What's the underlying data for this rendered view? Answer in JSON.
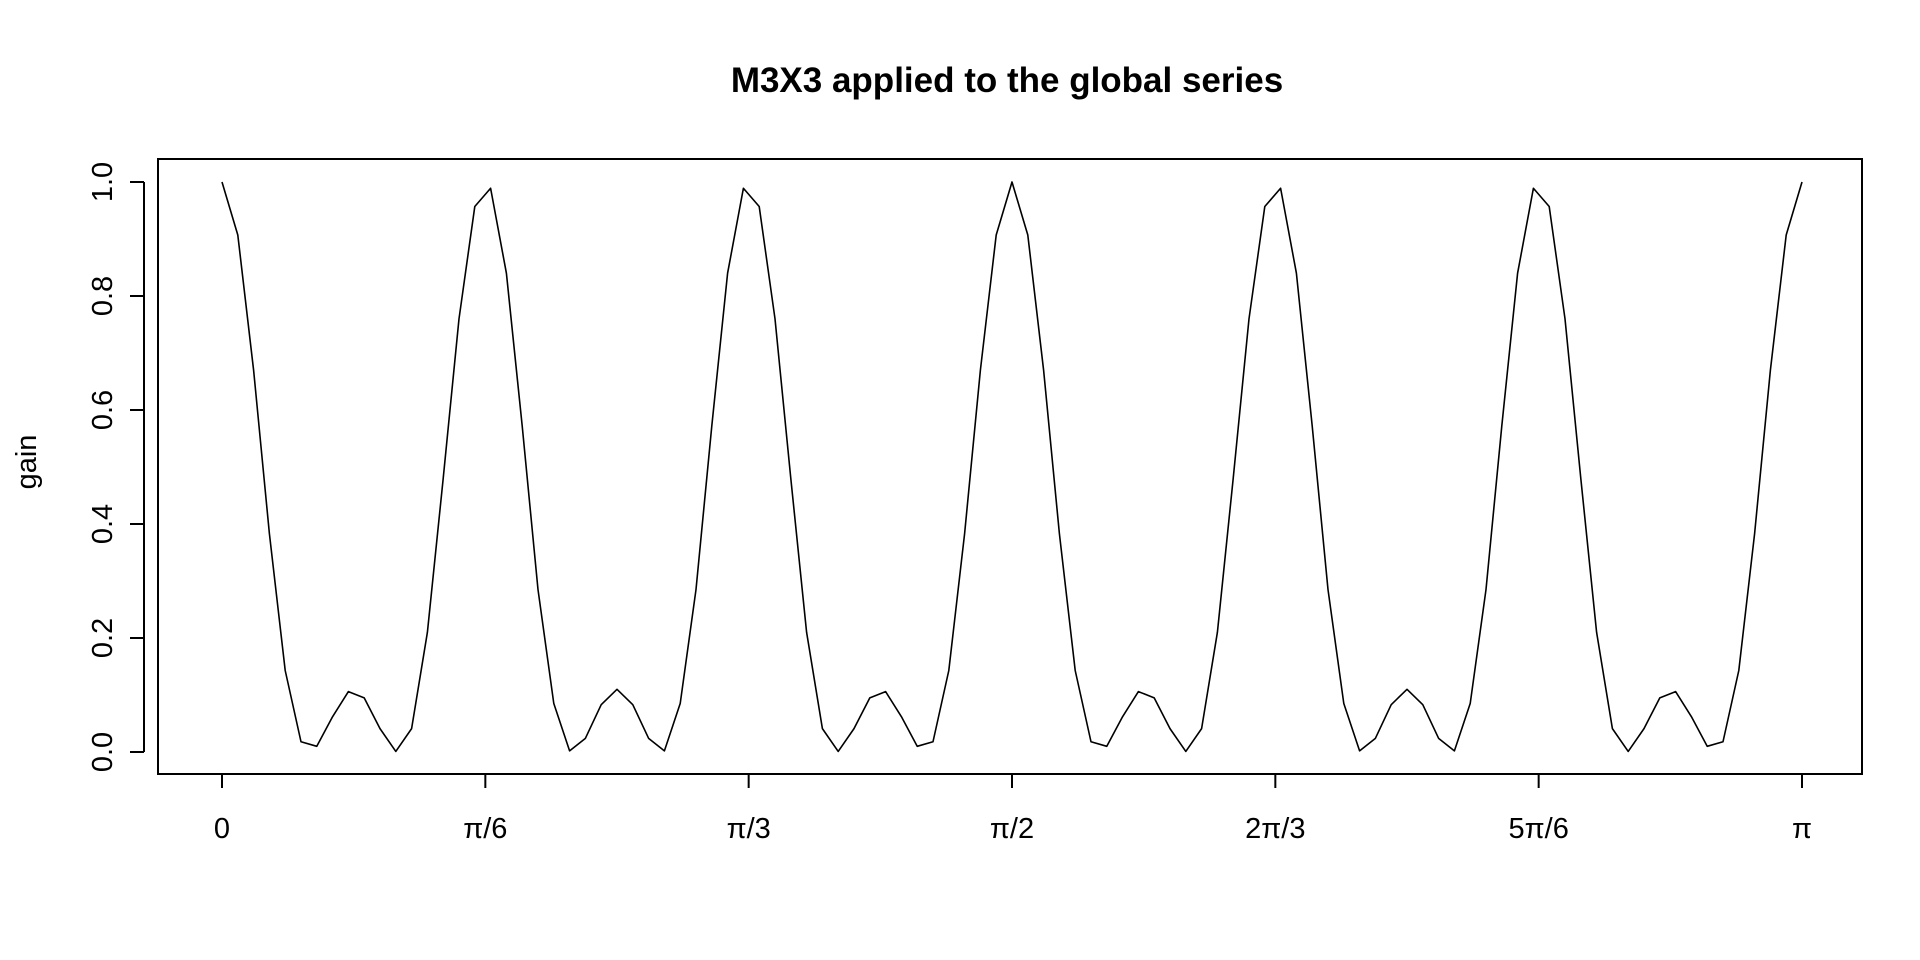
{
  "chart_data": {
    "type": "line",
    "title": "M3X3 applied to the global series",
    "xlabel": "",
    "ylabel": "gain",
    "xlim": [
      0,
      3.14159265
    ],
    "ylim": [
      0,
      1
    ],
    "grid": false,
    "legend": "none",
    "line_color": "#000000",
    "y_ticks": [
      {
        "value": 0,
        "label": "0.0"
      },
      {
        "value": 0.2,
        "label": "0.2"
      },
      {
        "value": 0.4,
        "label": "0.4"
      },
      {
        "value": 0.6,
        "label": "0.6"
      },
      {
        "value": 0.8,
        "label": "0.8"
      },
      {
        "value": 1,
        "label": "1.0"
      }
    ],
    "x_ticks": [
      {
        "value": 0,
        "label": "0"
      },
      {
        "value": 0.523599,
        "label": "π/6"
      },
      {
        "value": 1.047198,
        "label": "π/3"
      },
      {
        "value": 1.570796,
        "label": "π/2"
      },
      {
        "value": 2.094395,
        "label": "2π/3"
      },
      {
        "value": 2.617994,
        "label": "5π/6"
      },
      {
        "value": 3.141593,
        "label": "π"
      }
    ],
    "series": [
      {
        "x_step": 0.031416,
        "y": [
          1.0,
          0.907,
          0.67,
          0.383,
          0.143,
          0.018,
          0.01,
          0.062,
          0.106,
          0.095,
          0.041,
          0.001,
          0.041,
          0.21,
          0.48,
          0.76,
          0.957,
          0.989,
          0.84,
          0.572,
          0.285,
          0.085,
          0.002,
          0.024,
          0.083,
          0.11,
          0.083,
          0.024,
          0.002,
          0.085,
          0.285,
          0.572,
          0.84,
          0.989,
          0.957,
          0.76,
          0.48,
          0.21,
          0.041,
          0.001,
          0.041,
          0.095,
          0.106,
          0.062,
          0.01,
          0.018,
          0.143,
          0.383,
          0.67,
          0.907,
          1.0,
          0.907,
          0.67,
          0.383,
          0.143,
          0.018,
          0.01,
          0.062,
          0.106,
          0.095,
          0.041,
          0.001,
          0.041,
          0.21,
          0.48,
          0.76,
          0.957,
          0.989,
          0.84,
          0.572,
          0.285,
          0.085,
          0.002,
          0.024,
          0.083,
          0.11,
          0.083,
          0.024,
          0.002,
          0.085,
          0.285,
          0.572,
          0.84,
          0.989,
          0.957,
          0.76,
          0.48,
          0.21,
          0.041,
          0.001,
          0.041,
          0.095,
          0.106,
          0.062,
          0.01,
          0.018,
          0.143,
          0.383,
          0.67,
          0.907,
          1.0
        ]
      }
    ]
  }
}
